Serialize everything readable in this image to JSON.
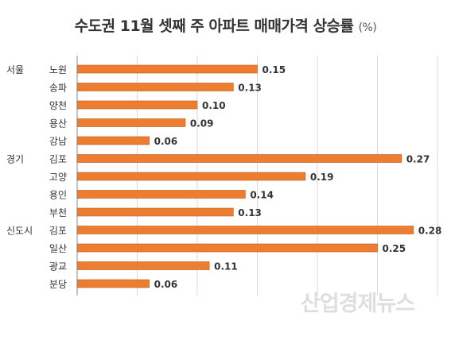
{
  "chart_data": {
    "type": "bar",
    "orientation": "horizontal",
    "title": "수도권 11월 셋째 주 아파트 매매가격 상승률",
    "unit": "(%)",
    "groups": [
      {
        "name": "서울",
        "start_index": 0
      },
      {
        "name": "경기",
        "start_index": 5
      },
      {
        "name": "신도시",
        "start_index": 9
      }
    ],
    "categories": [
      "노원",
      "송파",
      "양천",
      "용산",
      "강남",
      "김포",
      "고양",
      "용인",
      "부천",
      "김포",
      "일산",
      "광교",
      "분당"
    ],
    "values": [
      0.15,
      0.13,
      0.1,
      0.09,
      0.06,
      0.27,
      0.19,
      0.14,
      0.13,
      0.28,
      0.25,
      0.11,
      0.06
    ],
    "value_labels": [
      "0.15",
      "0.13",
      "0.10",
      "0.09",
      "0.06",
      "0.27",
      "0.19",
      "0.14",
      "0.13",
      "0.28",
      "0.25",
      "0.11",
      "0.06"
    ],
    "xlim": [
      0,
      0.3
    ],
    "grid": true,
    "bar_color": "#ed7d31"
  },
  "watermark": "산업경제뉴스"
}
